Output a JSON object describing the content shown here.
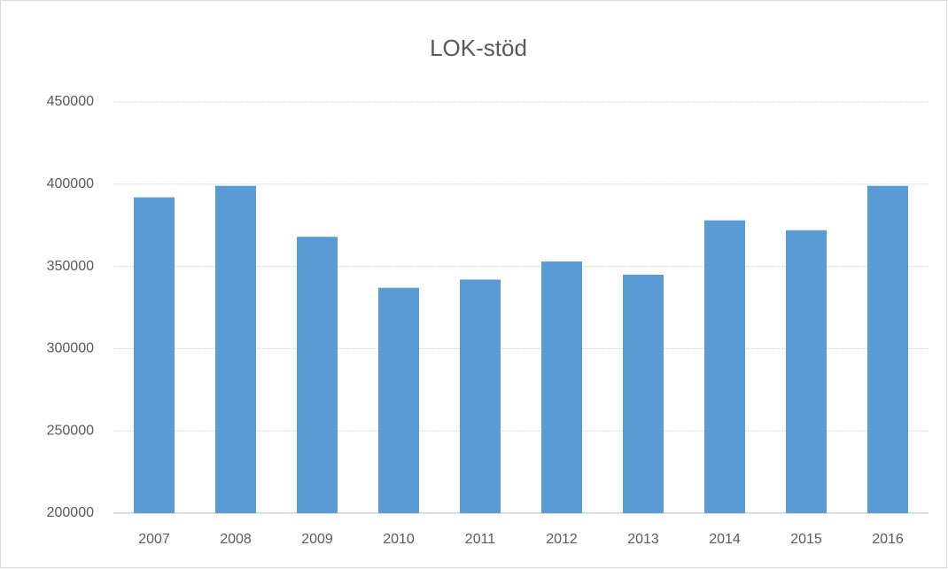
{
  "chart_data": {
    "type": "bar",
    "title": "LOK-stöd",
    "categories": [
      "2007",
      "2008",
      "2009",
      "2010",
      "2011",
      "2012",
      "2013",
      "2014",
      "2015",
      "2016"
    ],
    "values": [
      392000,
      399000,
      368000,
      337000,
      342000,
      353000,
      345000,
      378000,
      372000,
      399000
    ],
    "color": "#5b9bd5",
    "ylim": [
      200000,
      450000
    ],
    "yticks": [
      200000,
      250000,
      300000,
      350000,
      400000,
      450000
    ],
    "grid": true
  }
}
